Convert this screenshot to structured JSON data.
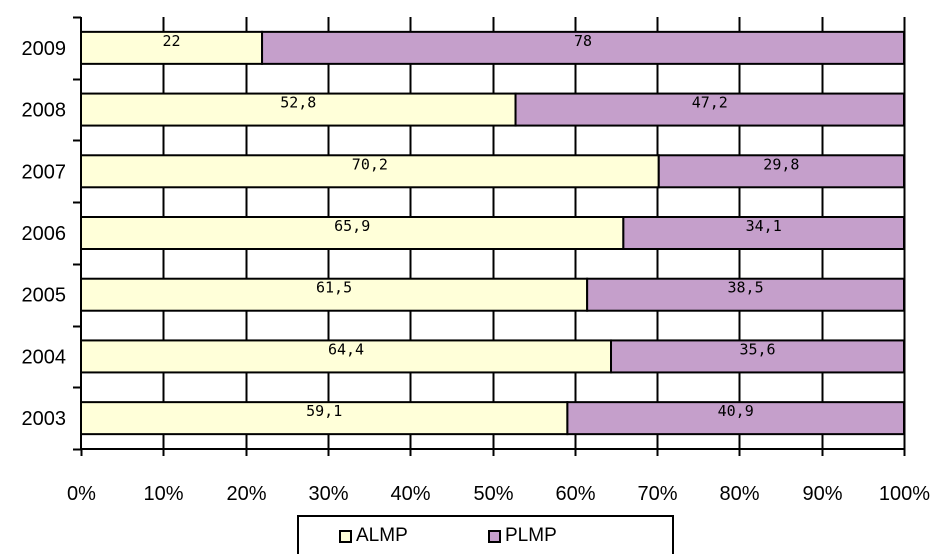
{
  "chart_data": {
    "type": "bar",
    "orientation": "horizontal",
    "stacked": true,
    "categories": [
      "2009",
      "2008",
      "2007",
      "2006",
      "2005",
      "2004",
      "2003"
    ],
    "series": [
      {
        "name": "ALMP",
        "color": "#ffffd9",
        "values": [
          22,
          52.8,
          70.2,
          65.9,
          61.5,
          64.4,
          59.1
        ],
        "labels": [
          "22",
          "52,8",
          "70,2",
          "65,9",
          "61,5",
          "64,4",
          "59,1"
        ]
      },
      {
        "name": "PLMP",
        "color": "#c59fcb",
        "values": [
          78,
          47.2,
          29.8,
          34.1,
          38.5,
          35.6,
          40.9
        ],
        "labels": [
          "78",
          "47,2",
          "29,8",
          "34,1",
          "38,5",
          "35,6",
          "40,9"
        ]
      }
    ],
    "xlim": [
      0,
      100
    ],
    "x_ticks": [
      "0%",
      "10%",
      "20%",
      "30%",
      "40%",
      "50%",
      "60%",
      "70%",
      "80%",
      "90%",
      "100%"
    ],
    "grid": true,
    "legend_position": "bottom-center"
  }
}
